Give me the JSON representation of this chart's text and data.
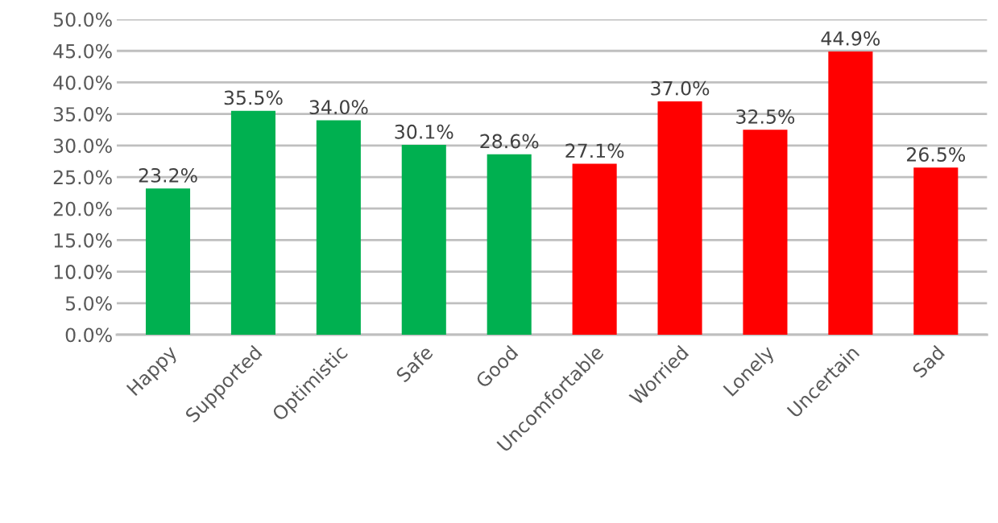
{
  "chart_data": {
    "type": "bar",
    "categories": [
      "Happy",
      "Supported",
      "Optimistic",
      "Safe",
      "Good",
      "Uncomfortable",
      "Worried",
      "Lonely",
      "Uncertain",
      "Sad"
    ],
    "values": [
      23.2,
      35.5,
      34.0,
      30.1,
      28.6,
      27.1,
      37.0,
      32.5,
      44.9,
      26.5
    ],
    "colors": [
      "#00b050",
      "#00b050",
      "#00b050",
      "#00b050",
      "#00b050",
      "#ff0000",
      "#ff0000",
      "#ff0000",
      "#ff0000",
      "#ff0000"
    ],
    "value_labels": [
      "23.2%",
      "35.5%",
      "34.0%",
      "30.1%",
      "28.6%",
      "27.1%",
      "37.0%",
      "32.5%",
      "44.9%",
      "26.5%"
    ],
    "ylim": [
      0,
      50
    ],
    "yticks": [
      {
        "value": 0,
        "label": "0.0%"
      },
      {
        "value": 5,
        "label": "5.0%"
      },
      {
        "value": 10,
        "label": "10.0%"
      },
      {
        "value": 15,
        "label": "15.0%"
      },
      {
        "value": 20,
        "label": "20.0%"
      },
      {
        "value": 25,
        "label": "25.0%"
      },
      {
        "value": 30,
        "label": "30.0%"
      },
      {
        "value": 35,
        "label": "35.0%"
      },
      {
        "value": 40,
        "label": "40.0%"
      },
      {
        "value": 45,
        "label": "45.0%"
      },
      {
        "value": 50,
        "label": "50.0%"
      }
    ],
    "grid": "y",
    "legend": false
  }
}
